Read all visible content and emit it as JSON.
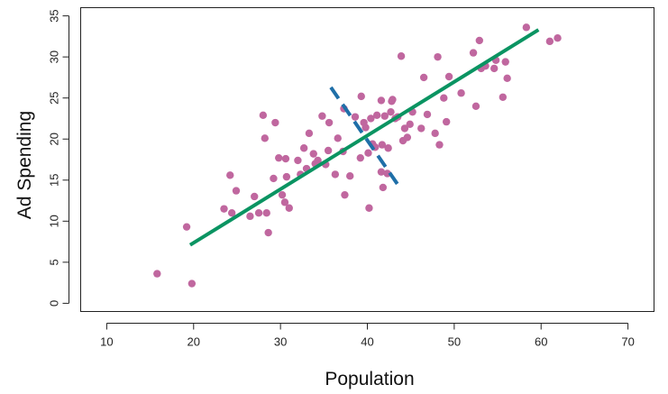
{
  "chart_data": {
    "type": "scatter",
    "xlabel": "Population",
    "ylabel": "Ad Spending",
    "xlim": [
      7,
      73
    ],
    "ylim": [
      -1,
      36
    ],
    "x_ticks": [
      10,
      20,
      30,
      40,
      50,
      60,
      70
    ],
    "y_ticks": [
      0,
      5,
      10,
      15,
      20,
      25,
      30,
      35
    ],
    "grid": false,
    "colors": {
      "points": "#c0679f",
      "fit_line": "#0a9462",
      "dashed_line": "#1f6fa8",
      "frame": "#222222"
    },
    "points": [
      [
        15.8,
        3.6
      ],
      [
        19.8,
        2.4
      ],
      [
        19.2,
        9.3
      ],
      [
        23.5,
        11.5
      ],
      [
        24.2,
        15.6
      ],
      [
        24.4,
        11.0
      ],
      [
        24.9,
        13.7
      ],
      [
        26.5,
        10.6
      ],
      [
        27.0,
        13.0
      ],
      [
        27.5,
        11.0
      ],
      [
        28.0,
        22.9
      ],
      [
        28.2,
        20.1
      ],
      [
        28.4,
        11.0
      ],
      [
        28.6,
        8.6
      ],
      [
        29.2,
        15.2
      ],
      [
        29.4,
        22.0
      ],
      [
        29.8,
        17.7
      ],
      [
        30.2,
        13.2
      ],
      [
        30.5,
        12.3
      ],
      [
        30.6,
        17.6
      ],
      [
        30.7,
        15.4
      ],
      [
        31.0,
        11.6
      ],
      [
        32.0,
        17.4
      ],
      [
        32.3,
        15.7
      ],
      [
        32.7,
        18.9
      ],
      [
        33.0,
        16.4
      ],
      [
        33.3,
        20.7
      ],
      [
        33.8,
        18.2
      ],
      [
        34.0,
        17.0
      ],
      [
        34.3,
        17.4
      ],
      [
        34.8,
        22.8
      ],
      [
        35.2,
        16.9
      ],
      [
        35.5,
        18.6
      ],
      [
        35.6,
        22.0
      ],
      [
        36.3,
        15.7
      ],
      [
        36.6,
        20.1
      ],
      [
        37.2,
        18.5
      ],
      [
        37.3,
        23.7
      ],
      [
        37.4,
        13.2
      ],
      [
        38.0,
        15.5
      ],
      [
        38.6,
        22.7
      ],
      [
        39.2,
        17.7
      ],
      [
        39.3,
        25.2
      ],
      [
        39.6,
        22.0
      ],
      [
        39.8,
        21.4
      ],
      [
        40.1,
        18.3
      ],
      [
        40.2,
        11.6
      ],
      [
        40.4,
        22.5
      ],
      [
        40.6,
        19.4
      ],
      [
        40.9,
        19.0
      ],
      [
        41.1,
        22.9
      ],
      [
        41.6,
        24.7
      ],
      [
        41.6,
        16.0
      ],
      [
        41.7,
        19.3
      ],
      [
        41.8,
        14.1
      ],
      [
        42.0,
        22.8
      ],
      [
        42.3,
        15.8
      ],
      [
        42.4,
        18.9
      ],
      [
        42.7,
        23.3
      ],
      [
        42.8,
        24.6
      ],
      [
        42.9,
        24.8
      ],
      [
        43.2,
        22.5
      ],
      [
        43.5,
        22.7
      ],
      [
        43.9,
        30.1
      ],
      [
        44.1,
        19.8
      ],
      [
        44.3,
        21.3
      ],
      [
        44.6,
        20.2
      ],
      [
        44.9,
        21.8
      ],
      [
        45.2,
        23.3
      ],
      [
        46.2,
        21.3
      ],
      [
        46.5,
        27.5
      ],
      [
        46.9,
        23.0
      ],
      [
        47.8,
        20.7
      ],
      [
        48.1,
        30.0
      ],
      [
        48.3,
        19.3
      ],
      [
        48.8,
        25.0
      ],
      [
        49.1,
        22.1
      ],
      [
        49.4,
        27.6
      ],
      [
        50.8,
        25.6
      ],
      [
        52.2,
        30.5
      ],
      [
        52.5,
        24.0
      ],
      [
        52.9,
        32.0
      ],
      [
        53.1,
        28.6
      ],
      [
        53.6,
        28.9
      ],
      [
        54.6,
        28.6
      ],
      [
        54.8,
        29.6
      ],
      [
        55.6,
        25.1
      ],
      [
        55.9,
        29.4
      ],
      [
        56.1,
        27.4
      ],
      [
        58.3,
        33.6
      ],
      [
        61.0,
        31.9
      ],
      [
        61.9,
        32.3
      ]
    ],
    "fit_line": {
      "x": [
        19.6,
        59.7
      ],
      "y": [
        7.1,
        33.3
      ]
    },
    "dashed_line": {
      "x": [
        35.8,
        43.8
      ],
      "y": [
        26.3,
        14.0
      ]
    }
  }
}
